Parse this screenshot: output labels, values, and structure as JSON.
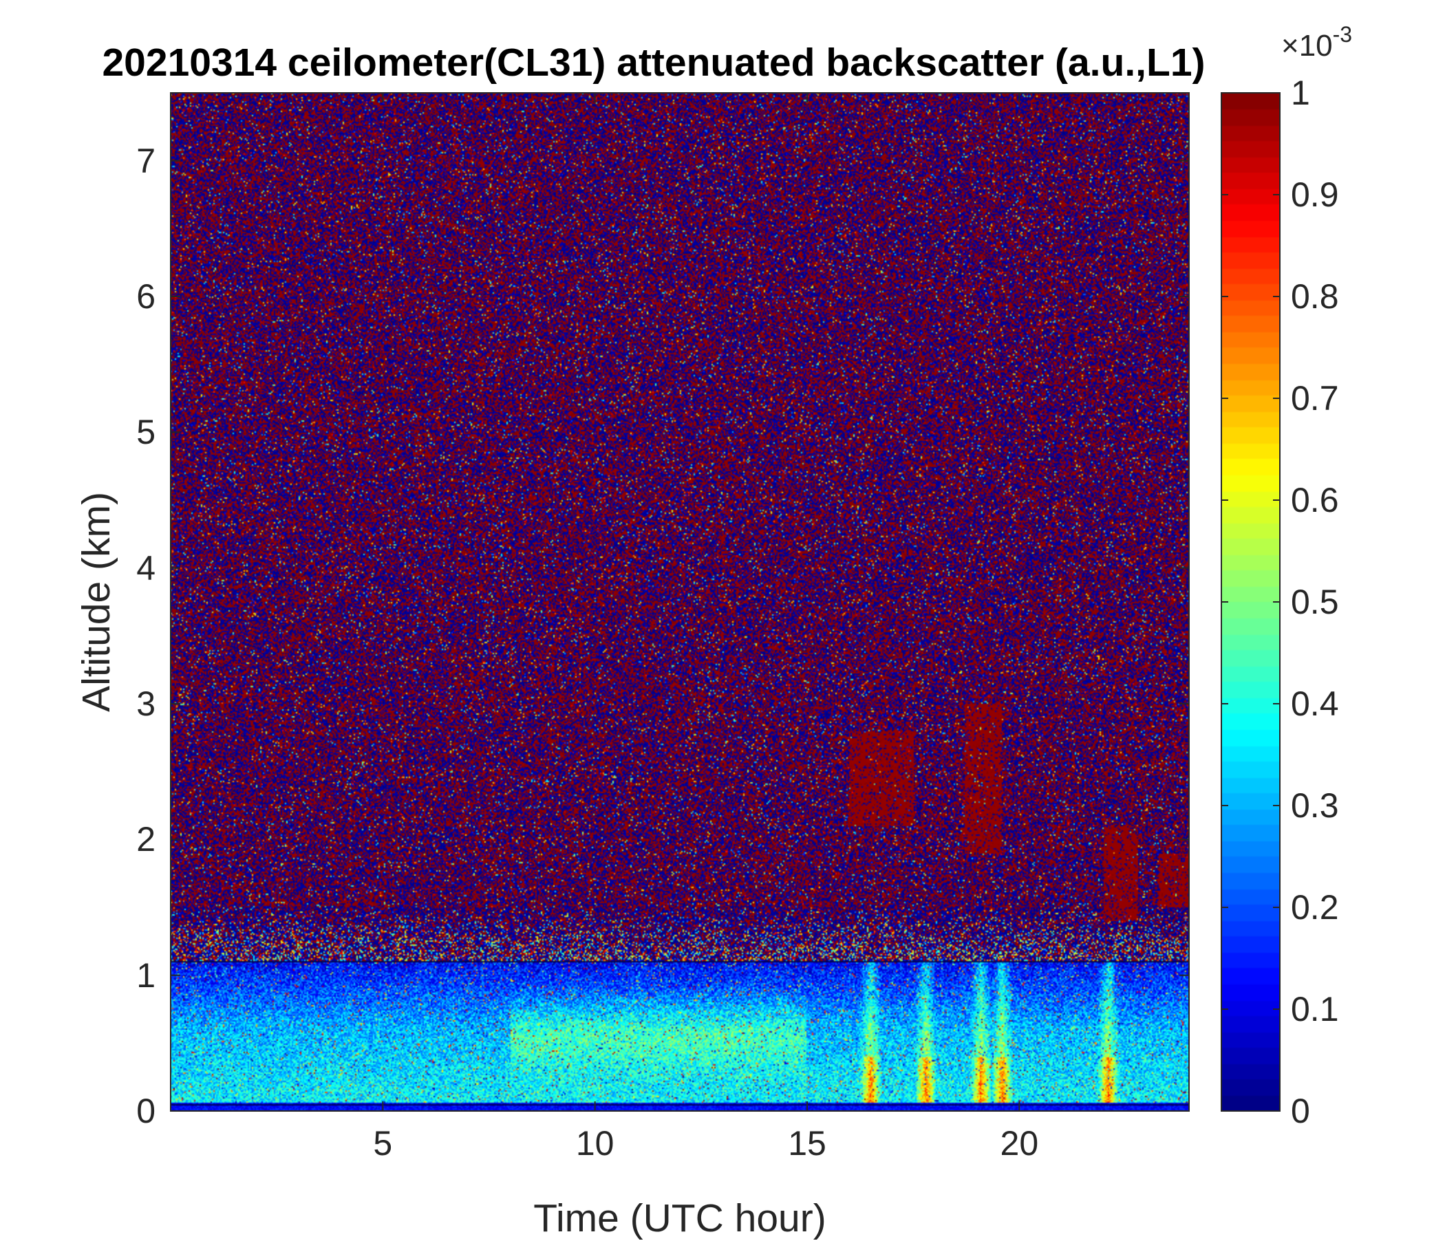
{
  "chart_data": {
    "type": "heatmap",
    "title": "20210314 ceilometer(CL31) attenuated backscatter (a.u.,L1)",
    "xlabel": "Time (UTC hour)",
    "ylabel": "Altitude (km)",
    "xlim": [
      0,
      24
    ],
    "ylim": [
      0,
      7.5
    ],
    "xticks": [
      5,
      10,
      15,
      20
    ],
    "xtick_labels": [
      "5",
      "10",
      "15",
      "20"
    ],
    "yticks": [
      0,
      1,
      2,
      3,
      4,
      5,
      6,
      7
    ],
    "ytick_labels": [
      "0",
      "1",
      "2",
      "3",
      "4",
      "5",
      "6",
      "7"
    ],
    "colorbar": {
      "colormap": "jet",
      "clim": [
        0,
        1
      ],
      "ticks": [
        0,
        0.1,
        0.2,
        0.3,
        0.4,
        0.5,
        0.6,
        0.7,
        0.8,
        0.9,
        1
      ],
      "tick_labels": [
        "0",
        "0.1",
        "0.2",
        "0.3",
        "0.4",
        "0.5",
        "0.6",
        "0.7",
        "0.8",
        "0.9",
        "1"
      ],
      "exponent_base": "×10",
      "exponent_power": "-3"
    },
    "features": {
      "aerosol_layer_top_km": 1.1,
      "noise_region_above_km": 1.5,
      "cloud_patches": [
        {
          "t_start": 16.0,
          "t_end": 17.5,
          "alt_low": 2.1,
          "alt_high": 2.8
        },
        {
          "t_start": 18.7,
          "t_end": 19.6,
          "alt_low": 1.9,
          "alt_high": 3.0
        },
        {
          "t_start": 22.0,
          "t_end": 22.8,
          "alt_low": 1.4,
          "alt_high": 2.1
        },
        {
          "t_start": 23.3,
          "t_end": 24.0,
          "alt_low": 1.5,
          "alt_high": 1.9
        }
      ],
      "precip_streaks_hours": [
        16.5,
        17.8,
        19.1,
        19.6,
        22.1
      ]
    },
    "grid": false
  }
}
